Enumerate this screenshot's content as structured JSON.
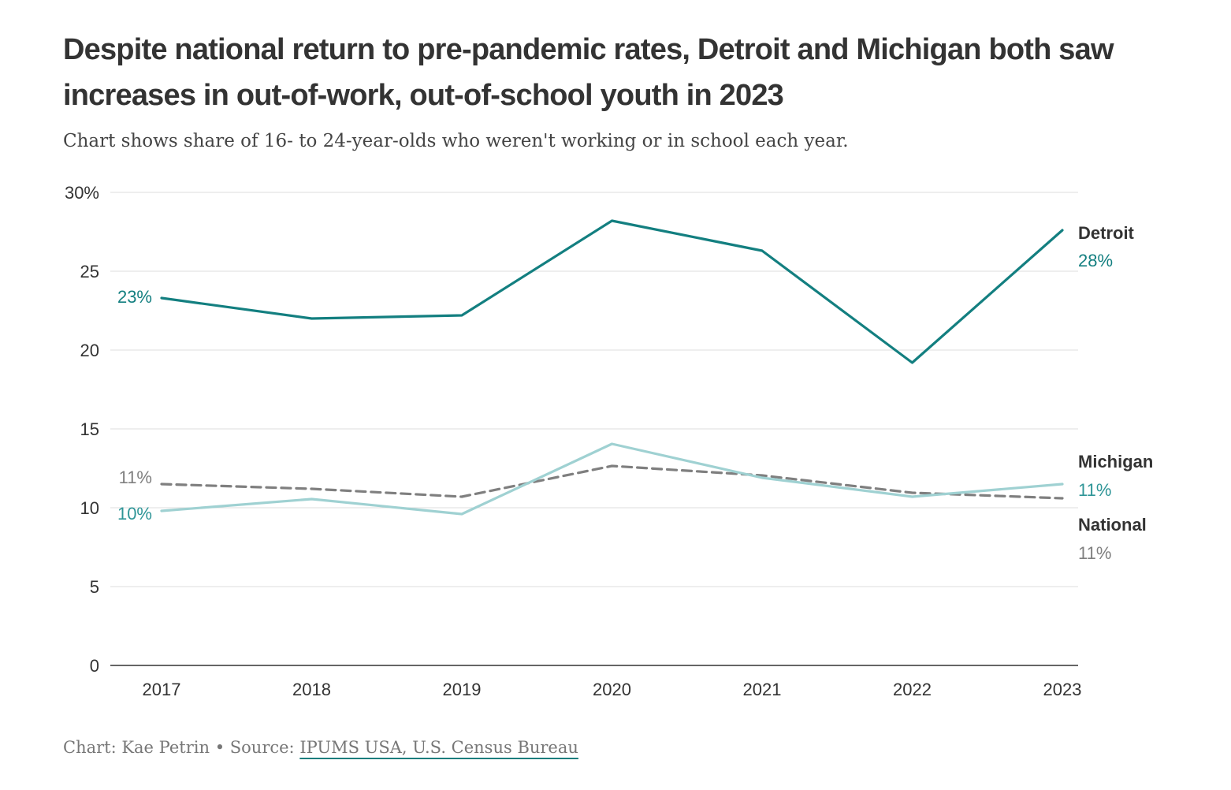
{
  "header": {
    "title": "Despite national return to pre-pandemic rates, Detroit and Michigan both saw increases in out-of-work, out-of-school youth in 2023",
    "subtitle": "Chart shows share of 16- to 24-year-olds who weren't working or in school each year."
  },
  "footer": {
    "credit": "Chart: Kae Petrin",
    "separator": "•",
    "source_label": "Source:",
    "source_link": "IPUMS USA, U.S. Census Bureau"
  },
  "chart_data": {
    "type": "line",
    "title": "Despite national return to pre-pandemic rates, Detroit and Michigan both saw increases in out-of-work, out-of-school youth in 2023",
    "xlabel": "",
    "ylabel": "",
    "categories": [
      "2017",
      "2018",
      "2019",
      "2020",
      "2021",
      "2022",
      "2023"
    ],
    "ylim": [
      0,
      30
    ],
    "yticks": [
      0,
      5,
      10,
      15,
      20,
      25,
      30
    ],
    "ytick_labels": [
      "0",
      "5",
      "10",
      "15",
      "20",
      "25",
      "30%"
    ],
    "grid": true,
    "series": [
      {
        "name": "Detroit",
        "values": [
          23.3,
          22.0,
          22.2,
          28.2,
          26.3,
          19.2,
          27.6
        ],
        "color": "#137f80",
        "dash": false,
        "start_label": "23%",
        "end_label": "28%"
      },
      {
        "name": "Michigan",
        "values": [
          9.8,
          10.55,
          9.6,
          14.05,
          11.9,
          10.7,
          11.5
        ],
        "color": "#9fd1d2",
        "dash": false,
        "start_label": "10%",
        "end_label": "11%"
      },
      {
        "name": "National",
        "values": [
          11.5,
          11.2,
          10.7,
          12.65,
          12.05,
          10.95,
          10.6
        ],
        "color": "#7f7f7f",
        "dash": true,
        "start_label": "11%",
        "end_label": "11%"
      }
    ]
  }
}
